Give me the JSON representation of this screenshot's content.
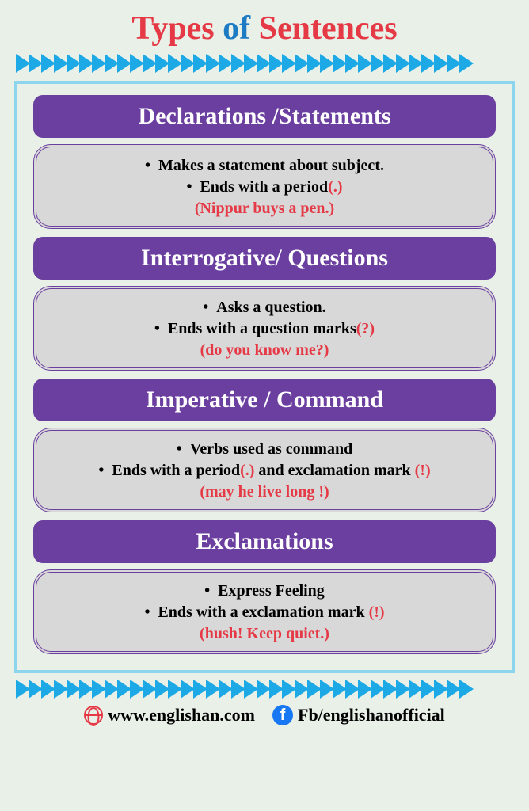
{
  "title": {
    "word1": "Types",
    "word2": "of",
    "word3": "Sentences"
  },
  "sections": [
    {
      "header": "Declarations /Statements",
      "lines": [
        {
          "text": "Makes a statement about subject.",
          "mark": ""
        },
        {
          "text": "Ends with a period",
          "mark": "(.)"
        }
      ],
      "example": "(Nippur buys a pen.)"
    },
    {
      "header": "Interrogative/ Questions",
      "lines": [
        {
          "text": "Asks a question.",
          "mark": ""
        },
        {
          "text": "Ends with a question marks",
          "mark": "(?)"
        }
      ],
      "example": "(do you know me?)"
    },
    {
      "header": "Imperative / Command",
      "lines": [
        {
          "text": "Verbs used as  command",
          "mark": ""
        },
        {
          "text": "Ends with a period",
          "mark": "(.)",
          "text2": " and exclamation mark ",
          "mark2": "(!)"
        }
      ],
      "example": "(may he live long !)"
    },
    {
      "header": "Exclamations",
      "lines": [
        {
          "text": "Express Feeling",
          "mark": ""
        },
        {
          "text": "Ends with a exclamation mark ",
          "mark": "(!)"
        }
      ],
      "example": "(hush! Keep quiet.)"
    }
  ],
  "footer": {
    "site": "www.englishan.com",
    "fb": "Fb/englishanofficial"
  }
}
